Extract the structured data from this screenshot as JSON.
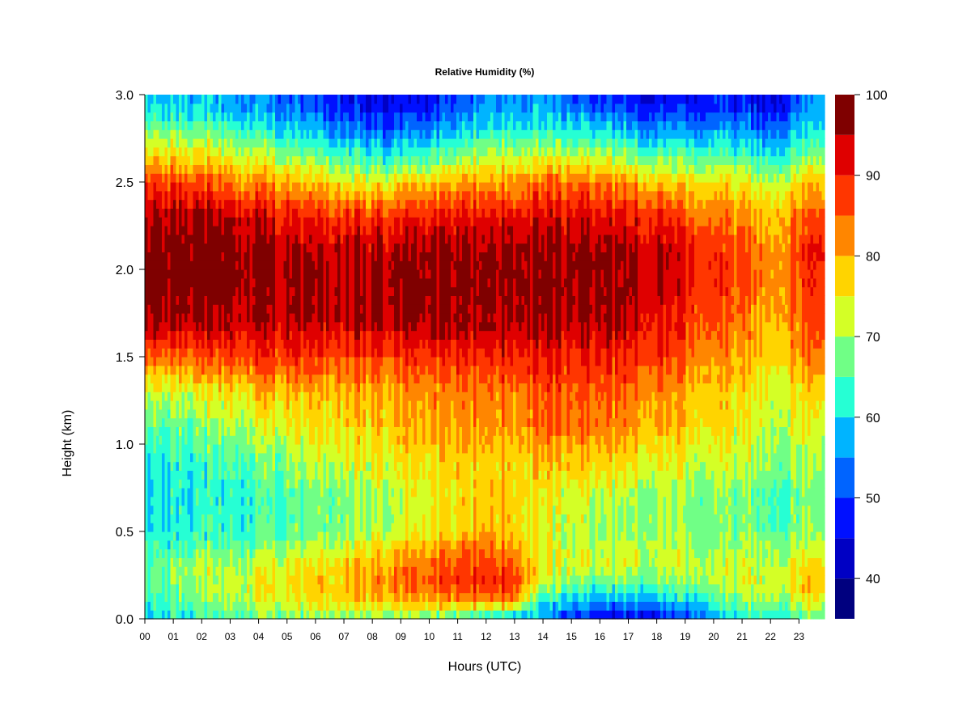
{
  "chart_data": {
    "type": "heatmap",
    "title": "Relative Humidity (%)",
    "xlabel": "Hours (UTC)",
    "ylabel": "Height (km)",
    "xlim": [
      0,
      23.9
    ],
    "ylim": [
      0.0,
      3.0
    ],
    "x_ticks": [
      0,
      1,
      2,
      3,
      4,
      5,
      6,
      7,
      8,
      9,
      10,
      11,
      12,
      13,
      14,
      15,
      16,
      17,
      18,
      19,
      20,
      21,
      22,
      23
    ],
    "x_tick_labels": [
      "00",
      "01",
      "02",
      "03",
      "04",
      "05",
      "06",
      "07",
      "08",
      "09",
      "10",
      "11",
      "12",
      "13",
      "14",
      "15",
      "16",
      "17",
      "18",
      "19",
      "20",
      "21",
      "22",
      "23"
    ],
    "y_ticks": [
      0.0,
      0.5,
      1.0,
      1.5,
      2.0,
      2.5,
      3.0
    ],
    "y_tick_labels": [
      "0.0",
      "0.5",
      "1.0",
      "1.5",
      "2.0",
      "2.5",
      "3.0"
    ],
    "colorbar": {
      "range": [
        35,
        100
      ],
      "levels": [
        35,
        40,
        45,
        50,
        55,
        60,
        65,
        70,
        75,
        80,
        85,
        90,
        95,
        100
      ],
      "colors": [
        "#00007f",
        "#0000c4",
        "#0010ff",
        "#0064ff",
        "#00b4ff",
        "#26ffd4",
        "#70ff86",
        "#d4ff26",
        "#ffd400",
        "#ff8600",
        "#ff3600",
        "#df0000",
        "#7f0000"
      ],
      "tick_values": [
        40,
        50,
        60,
        70,
        80,
        90,
        100
      ],
      "tick_labels": [
        "40",
        "50",
        "60",
        "70",
        "80",
        "90",
        "100"
      ]
    },
    "grid": false,
    "heights_km": [
      0.0,
      0.1,
      0.2,
      0.3,
      0.4,
      0.5,
      0.7,
      0.9,
      1.1,
      1.3,
      1.5,
      1.7,
      1.9,
      2.1,
      2.3,
      2.5,
      2.65,
      2.8,
      2.95
    ],
    "rh_profiles_by_hour": [
      {
        "hour": 0,
        "values": [
          60,
          64,
          66,
          66,
          64,
          62,
          61,
          62,
          66,
          72,
          85,
          96,
          99,
          99,
          96,
          88,
          78,
          68,
          60
        ]
      },
      {
        "hour": 2,
        "values": [
          62,
          68,
          70,
          70,
          66,
          63,
          62,
          63,
          68,
          74,
          86,
          96,
          99,
          99,
          96,
          86,
          76,
          66,
          58
        ]
      },
      {
        "hour": 4,
        "values": [
          66,
          72,
          74,
          72,
          68,
          64,
          63,
          66,
          72,
          78,
          88,
          94,
          96,
          96,
          92,
          82,
          72,
          62,
          55
        ]
      },
      {
        "hour": 6,
        "values": [
          68,
          76,
          78,
          76,
          72,
          68,
          67,
          72,
          76,
          80,
          88,
          95,
          96,
          95,
          90,
          78,
          68,
          58,
          50
        ]
      },
      {
        "hour": 8,
        "values": [
          68,
          78,
          82,
          80,
          76,
          70,
          70,
          74,
          78,
          80,
          87,
          95,
          96,
          95,
          88,
          74,
          62,
          52,
          45
        ]
      },
      {
        "hour": 10,
        "values": [
          66,
          80,
          86,
          84,
          80,
          74,
          74,
          76,
          80,
          82,
          88,
          96,
          97,
          96,
          90,
          78,
          64,
          54,
          46
        ]
      },
      {
        "hour": 12,
        "values": [
          60,
          82,
          90,
          89,
          86,
          80,
          78,
          78,
          82,
          84,
          90,
          96,
          97,
          97,
          92,
          82,
          72,
          62,
          56
        ]
      },
      {
        "hour": 13,
        "values": [
          56,
          82,
          88,
          86,
          82,
          78,
          78,
          78,
          82,
          84,
          90,
          96,
          97,
          97,
          92,
          82,
          72,
          62,
          56
        ]
      },
      {
        "hour": 14,
        "values": [
          54,
          60,
          70,
          74,
          74,
          72,
          74,
          78,
          84,
          86,
          90,
          96,
          97,
          97,
          92,
          84,
          72,
          62,
          56
        ]
      },
      {
        "hour": 16,
        "values": [
          45,
          56,
          66,
          72,
          72,
          70,
          72,
          78,
          84,
          86,
          90,
          96,
          97,
          97,
          92,
          84,
          72,
          60,
          50
        ]
      },
      {
        "hour": 18,
        "values": [
          44,
          56,
          66,
          72,
          72,
          70,
          70,
          74,
          80,
          82,
          88,
          92,
          94,
          94,
          90,
          78,
          66,
          55,
          46
        ]
      },
      {
        "hour": 20,
        "values": [
          56,
          64,
          70,
          72,
          70,
          68,
          68,
          72,
          76,
          78,
          82,
          86,
          88,
          88,
          84,
          76,
          66,
          56,
          48
        ]
      },
      {
        "hour": 22,
        "values": [
          62,
          70,
          74,
          72,
          70,
          66,
          66,
          70,
          72,
          74,
          78,
          80,
          82,
          82,
          80,
          72,
          62,
          54,
          45
        ]
      },
      {
        "hour": 23.9,
        "values": [
          68,
          74,
          80,
          78,
          72,
          70,
          68,
          70,
          74,
          78,
          84,
          88,
          90,
          92,
          88,
          80,
          70,
          62,
          58
        ]
      }
    ]
  }
}
